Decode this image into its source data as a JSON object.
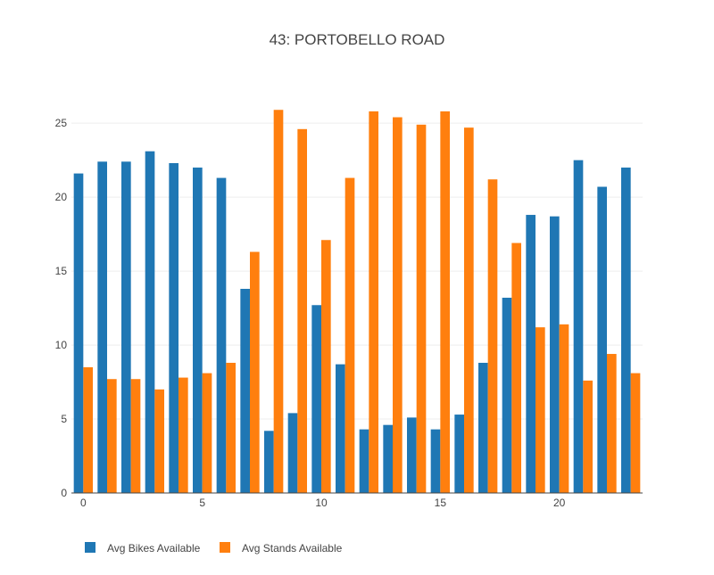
{
  "chart_data": {
    "type": "bar",
    "title": "43: PORTOBELLO ROAD",
    "xlabel": "",
    "ylabel": "",
    "x": [
      0,
      1,
      2,
      3,
      4,
      5,
      6,
      7,
      8,
      9,
      10,
      11,
      12,
      13,
      14,
      15,
      16,
      17,
      18,
      19,
      20,
      21,
      22,
      23
    ],
    "xticks": [
      0,
      5,
      10,
      15,
      20
    ],
    "yticks": [
      0,
      5,
      10,
      15,
      20,
      25
    ],
    "xlim": [
      -0.5,
      23.5
    ],
    "ylim": [
      0,
      27.3
    ],
    "grid": true,
    "legend_position": "bottom-left",
    "series": [
      {
        "name": "Avg Bikes Available",
        "color": "#1f77b4",
        "values": [
          21.6,
          22.4,
          22.4,
          23.1,
          22.3,
          22.0,
          21.3,
          13.8,
          4.2,
          5.4,
          12.7,
          8.7,
          4.3,
          4.6,
          5.1,
          4.3,
          5.3,
          8.8,
          13.2,
          18.8,
          18.7,
          22.5,
          20.7,
          22.0
        ]
      },
      {
        "name": "Avg Stands Available",
        "color": "#ff7f0e",
        "values": [
          8.5,
          7.7,
          7.7,
          7.0,
          7.8,
          8.1,
          8.8,
          16.3,
          25.9,
          24.6,
          17.1,
          21.3,
          25.8,
          25.4,
          24.9,
          25.8,
          24.7,
          21.2,
          16.9,
          11.2,
          11.4,
          7.6,
          9.4,
          8.1
        ]
      }
    ]
  }
}
